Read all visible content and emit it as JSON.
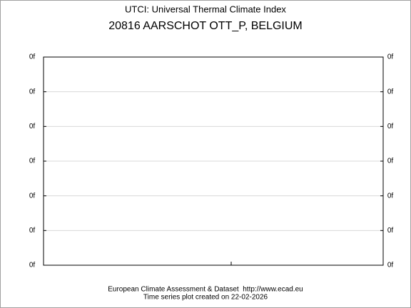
{
  "chart_data": {
    "type": "line",
    "title": "UTCI: Universal Thermal Climate Index",
    "subtitle": "20816 AARSCHOT OTT_P, BELGIUM",
    "series": [],
    "ylim": [
      0,
      6
    ],
    "yticks": [
      {
        "value": 0,
        "label": "0f"
      },
      {
        "value": 1,
        "label": "0f"
      },
      {
        "value": 2,
        "label": "0f"
      },
      {
        "value": 3,
        "label": "0f"
      },
      {
        "value": 4,
        "label": "0f"
      },
      {
        "value": 5,
        "label": "0f"
      },
      {
        "value": 6,
        "label": "0f"
      }
    ],
    "grid": true,
    "annotations": [
      "European Climate Assessment & Dataset  http://www.ecad.eu",
      "Time series plot created on 22-02-2026"
    ]
  }
}
